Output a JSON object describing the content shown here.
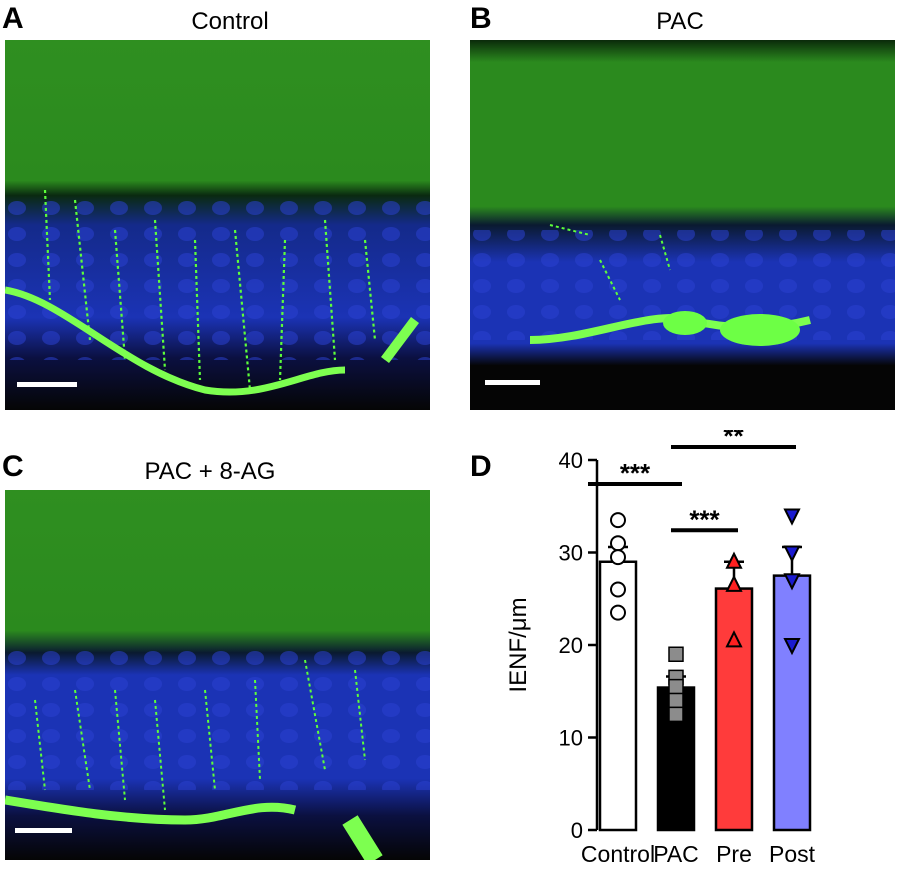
{
  "panels": [
    {
      "letter": "A",
      "title": "Control"
    },
    {
      "letter": "B",
      "title": "PAC"
    },
    {
      "letter": "C",
      "title": "PAC + 8-AG"
    },
    {
      "letter": "D",
      "title": ""
    }
  ],
  "colors": {
    "stroma": "#2c8a1c",
    "nuclei": "#1a2bb0",
    "fibers": "#5dff3a",
    "control_bar": "#ffffff",
    "pac_bar": "#000000",
    "pre_bar": "#ff3b3b",
    "post_bar": "#8080ff"
  },
  "chart_data": {
    "type": "bar",
    "ylabel": "IENF/μm",
    "ylim": [
      0,
      40
    ],
    "yticks": [
      0,
      10,
      20,
      30,
      40
    ],
    "grid": false,
    "categories": [
      "Control",
      "PAC",
      "Pre",
      "Post"
    ],
    "values": [
      29,
      15.4,
      26.1,
      27.5
    ],
    "errors": [
      1.6,
      1.2,
      2.9,
      3.1
    ],
    "points": [
      [
        33.5,
        31,
        29.5,
        26,
        23.5
      ],
      [
        19,
        16.5,
        15.5,
        14,
        12.5
      ],
      [
        29,
        26.5,
        20.5
      ],
      [
        34,
        30,
        27,
        20
      ]
    ],
    "markers": [
      "circle",
      "square",
      "triangle-up",
      "triangle-down"
    ],
    "significance": [
      {
        "from": 0,
        "to": 1,
        "y": 37.4,
        "label": "***"
      },
      {
        "from": 1,
        "to": 3,
        "y": 41.4,
        "label": "**"
      },
      {
        "from": 1,
        "to": 2,
        "y": 32.4,
        "label": "***"
      }
    ]
  }
}
